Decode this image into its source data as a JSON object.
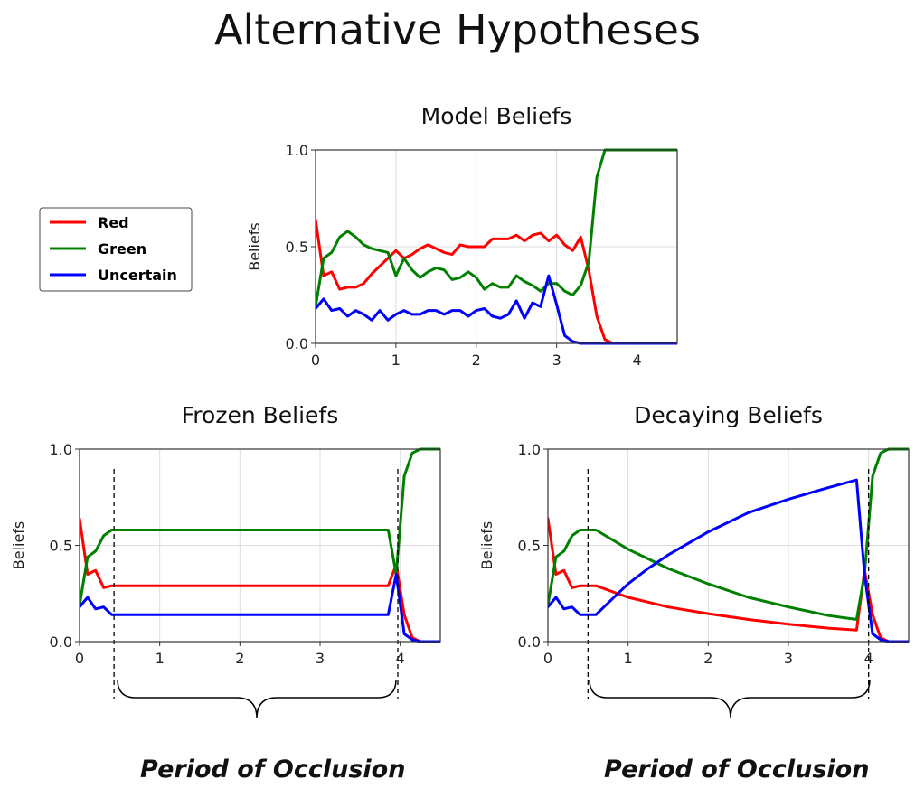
{
  "title": "Alternative Hypotheses",
  "legend": {
    "items": [
      {
        "label": "Red",
        "color": "#ff0000"
      },
      {
        "label": "Green",
        "color": "#008000"
      },
      {
        "label": "Uncertain",
        "color": "#0000ff"
      }
    ]
  },
  "occlusion_labels": [
    "Period of Occlusion",
    "Period of Occlusion"
  ],
  "chart_data": [
    {
      "type": "line",
      "title": "Model Beliefs",
      "ylabel": "Beliefs",
      "xlabel": "",
      "xlim": [
        0,
        4.5
      ],
      "ylim": [
        0,
        1.0
      ],
      "xticks": [
        0,
        1,
        2,
        3,
        4
      ],
      "xtick_labels": [
        "0",
        "1",
        "2",
        "3",
        "4"
      ],
      "yticks": [
        0,
        0.5,
        1.0
      ],
      "ytick_labels": [
        "0.0",
        "0.5",
        "1.0"
      ],
      "grid": true,
      "series": [
        {
          "name": "Red",
          "color": "#ff0000",
          "points": [
            [
              0,
              0.64
            ],
            [
              0.1,
              0.35
            ],
            [
              0.2,
              0.37
            ],
            [
              0.3,
              0.28
            ],
            [
              0.4,
              0.29
            ],
            [
              0.5,
              0.29
            ],
            [
              0.6,
              0.31
            ],
            [
              0.7,
              0.36
            ],
            [
              0.8,
              0.4
            ],
            [
              0.9,
              0.44
            ],
            [
              1.0,
              0.48
            ],
            [
              1.1,
              0.44
            ],
            [
              1.2,
              0.46
            ],
            [
              1.3,
              0.49
            ],
            [
              1.4,
              0.51
            ],
            [
              1.5,
              0.49
            ],
            [
              1.6,
              0.47
            ],
            [
              1.7,
              0.46
            ],
            [
              1.8,
              0.51
            ],
            [
              1.9,
              0.5
            ],
            [
              2.0,
              0.5
            ],
            [
              2.1,
              0.5
            ],
            [
              2.2,
              0.54
            ],
            [
              2.3,
              0.54
            ],
            [
              2.4,
              0.54
            ],
            [
              2.5,
              0.56
            ],
            [
              2.6,
              0.53
            ],
            [
              2.7,
              0.56
            ],
            [
              2.8,
              0.57
            ],
            [
              2.9,
              0.53
            ],
            [
              3.0,
              0.56
            ],
            [
              3.1,
              0.51
            ],
            [
              3.2,
              0.48
            ],
            [
              3.3,
              0.55
            ],
            [
              3.4,
              0.38
            ],
            [
              3.5,
              0.14
            ],
            [
              3.6,
              0.02
            ],
            [
              3.7,
              0.0
            ],
            [
              3.8,
              0.0
            ],
            [
              3.9,
              0.0
            ],
            [
              4.5,
              0.0
            ]
          ]
        },
        {
          "name": "Green",
          "color": "#008000",
          "points": [
            [
              0,
              0.19
            ],
            [
              0.1,
              0.44
            ],
            [
              0.2,
              0.47
            ],
            [
              0.3,
              0.55
            ],
            [
              0.4,
              0.58
            ],
            [
              0.5,
              0.55
            ],
            [
              0.6,
              0.51
            ],
            [
              0.7,
              0.49
            ],
            [
              0.8,
              0.48
            ],
            [
              0.9,
              0.47
            ],
            [
              1.0,
              0.35
            ],
            [
              1.1,
              0.44
            ],
            [
              1.2,
              0.38
            ],
            [
              1.3,
              0.34
            ],
            [
              1.4,
              0.37
            ],
            [
              1.5,
              0.39
            ],
            [
              1.6,
              0.38
            ],
            [
              1.7,
              0.33
            ],
            [
              1.8,
              0.34
            ],
            [
              1.9,
              0.37
            ],
            [
              2.0,
              0.34
            ],
            [
              2.1,
              0.28
            ],
            [
              2.2,
              0.31
            ],
            [
              2.3,
              0.29
            ],
            [
              2.4,
              0.29
            ],
            [
              2.5,
              0.35
            ],
            [
              2.6,
              0.32
            ],
            [
              2.7,
              0.3
            ],
            [
              2.8,
              0.27
            ],
            [
              2.9,
              0.31
            ],
            [
              3.0,
              0.31
            ],
            [
              3.1,
              0.27
            ],
            [
              3.2,
              0.25
            ],
            [
              3.3,
              0.3
            ],
            [
              3.4,
              0.42
            ],
            [
              3.5,
              0.86
            ],
            [
              3.6,
              1.0
            ],
            [
              3.7,
              1.0
            ],
            [
              3.8,
              1.0
            ],
            [
              3.9,
              1.0
            ],
            [
              4.5,
              1.0
            ]
          ]
        },
        {
          "name": "Uncertain",
          "color": "#0000ff",
          "points": [
            [
              0,
              0.18
            ],
            [
              0.1,
              0.23
            ],
            [
              0.2,
              0.17
            ],
            [
              0.3,
              0.18
            ],
            [
              0.4,
              0.14
            ],
            [
              0.5,
              0.17
            ],
            [
              0.6,
              0.15
            ],
            [
              0.7,
              0.12
            ],
            [
              0.8,
              0.17
            ],
            [
              0.9,
              0.12
            ],
            [
              1.0,
              0.15
            ],
            [
              1.1,
              0.17
            ],
            [
              1.2,
              0.15
            ],
            [
              1.3,
              0.15
            ],
            [
              1.4,
              0.17
            ],
            [
              1.5,
              0.17
            ],
            [
              1.6,
              0.15
            ],
            [
              1.7,
              0.17
            ],
            [
              1.8,
              0.17
            ],
            [
              1.9,
              0.14
            ],
            [
              2.0,
              0.17
            ],
            [
              2.1,
              0.18
            ],
            [
              2.2,
              0.14
            ],
            [
              2.3,
              0.13
            ],
            [
              2.4,
              0.15
            ],
            [
              2.5,
              0.22
            ],
            [
              2.6,
              0.13
            ],
            [
              2.7,
              0.21
            ],
            [
              2.8,
              0.19
            ],
            [
              2.9,
              0.35
            ],
            [
              3.0,
              0.2
            ],
            [
              3.1,
              0.04
            ],
            [
              3.2,
              0.01
            ],
            [
              3.3,
              0.0
            ],
            [
              4.5,
              0.0
            ]
          ]
        }
      ]
    },
    {
      "type": "line",
      "title": "Frozen Beliefs",
      "ylabel": "Beliefs",
      "xlabel": "",
      "xlim": [
        0,
        4.5
      ],
      "ylim": [
        0,
        1.0
      ],
      "xticks": [
        0,
        1,
        2,
        3,
        4
      ],
      "xtick_labels": [
        "0",
        "1",
        "2",
        "3",
        "4"
      ],
      "yticks": [
        0,
        0.5,
        1.0
      ],
      "ytick_labels": [
        "0.0",
        "0.5",
        "1.0"
      ],
      "grid": true,
      "occlusion_markers": [
        0.43,
        3.97
      ],
      "series": [
        {
          "name": "Red",
          "color": "#ff0000",
          "points": [
            [
              0,
              0.64
            ],
            [
              0.1,
              0.35
            ],
            [
              0.2,
              0.37
            ],
            [
              0.3,
              0.28
            ],
            [
              0.4,
              0.29
            ],
            [
              0.5,
              0.29
            ],
            [
              3.85,
              0.29
            ],
            [
              3.95,
              0.4
            ],
            [
              4.05,
              0.14
            ],
            [
              4.15,
              0.02
            ],
            [
              4.25,
              0.0
            ],
            [
              4.5,
              0.0
            ]
          ]
        },
        {
          "name": "Green",
          "color": "#008000",
          "points": [
            [
              0,
              0.19
            ],
            [
              0.1,
              0.44
            ],
            [
              0.2,
              0.47
            ],
            [
              0.3,
              0.55
            ],
            [
              0.4,
              0.58
            ],
            [
              0.5,
              0.58
            ],
            [
              3.85,
              0.58
            ],
            [
              3.95,
              0.35
            ],
            [
              4.05,
              0.86
            ],
            [
              4.15,
              0.98
            ],
            [
              4.25,
              1.0
            ],
            [
              4.5,
              1.0
            ]
          ]
        },
        {
          "name": "Uncertain",
          "color": "#0000ff",
          "points": [
            [
              0,
              0.18
            ],
            [
              0.1,
              0.23
            ],
            [
              0.2,
              0.17
            ],
            [
              0.3,
              0.18
            ],
            [
              0.4,
              0.14
            ],
            [
              0.5,
              0.14
            ],
            [
              3.85,
              0.14
            ],
            [
              3.95,
              0.35
            ],
            [
              4.05,
              0.04
            ],
            [
              4.15,
              0.01
            ],
            [
              4.25,
              0.0
            ],
            [
              4.5,
              0.0
            ]
          ]
        }
      ]
    },
    {
      "type": "line",
      "title": "Decaying Beliefs",
      "ylabel": "Beliefs",
      "xlabel": "",
      "xlim": [
        0,
        4.5
      ],
      "ylim": [
        0,
        1.0
      ],
      "xticks": [
        0,
        1,
        2,
        3,
        4
      ],
      "xtick_labels": [
        "0",
        "1",
        "2",
        "3",
        "4"
      ],
      "yticks": [
        0,
        0.5,
        1.0
      ],
      "ytick_labels": [
        "0.0",
        "0.5",
        "1.0"
      ],
      "grid": true,
      "occlusion_markers": [
        0.5,
        4.0
      ],
      "series": [
        {
          "name": "Red",
          "color": "#ff0000",
          "points": [
            [
              0,
              0.64
            ],
            [
              0.1,
              0.35
            ],
            [
              0.2,
              0.37
            ],
            [
              0.3,
              0.28
            ],
            [
              0.4,
              0.29
            ],
            [
              0.6,
              0.29
            ],
            [
              0.8,
              0.26
            ],
            [
              1.0,
              0.23
            ],
            [
              1.25,
              0.205
            ],
            [
              1.5,
              0.18
            ],
            [
              2.0,
              0.145
            ],
            [
              2.5,
              0.115
            ],
            [
              3.0,
              0.09
            ],
            [
              3.5,
              0.07
            ],
            [
              3.85,
              0.06
            ],
            [
              3.95,
              0.37
            ],
            [
              4.05,
              0.14
            ],
            [
              4.15,
              0.02
            ],
            [
              4.25,
              0.0
            ],
            [
              4.5,
              0.0
            ]
          ]
        },
        {
          "name": "Green",
          "color": "#008000",
          "points": [
            [
              0,
              0.19
            ],
            [
              0.1,
              0.44
            ],
            [
              0.2,
              0.47
            ],
            [
              0.3,
              0.55
            ],
            [
              0.4,
              0.58
            ],
            [
              0.5,
              0.58
            ],
            [
              0.6,
              0.58
            ],
            [
              0.8,
              0.53
            ],
            [
              1.0,
              0.48
            ],
            [
              1.25,
              0.43
            ],
            [
              1.5,
              0.38
            ],
            [
              2.0,
              0.3
            ],
            [
              2.5,
              0.23
            ],
            [
              3.0,
              0.18
            ],
            [
              3.5,
              0.135
            ],
            [
              3.85,
              0.115
            ],
            [
              3.95,
              0.35
            ],
            [
              4.05,
              0.86
            ],
            [
              4.15,
              0.98
            ],
            [
              4.25,
              1.0
            ],
            [
              4.5,
              1.0
            ]
          ]
        },
        {
          "name": "Uncertain",
          "color": "#0000ff",
          "points": [
            [
              0,
              0.18
            ],
            [
              0.1,
              0.23
            ],
            [
              0.2,
              0.17
            ],
            [
              0.3,
              0.18
            ],
            [
              0.4,
              0.14
            ],
            [
              0.6,
              0.14
            ],
            [
              0.8,
              0.22
            ],
            [
              1.0,
              0.3
            ],
            [
              1.25,
              0.38
            ],
            [
              1.5,
              0.45
            ],
            [
              2.0,
              0.57
            ],
            [
              2.5,
              0.67
            ],
            [
              3.0,
              0.74
            ],
            [
              3.5,
              0.8
            ],
            [
              3.85,
              0.84
            ],
            [
              3.95,
              0.35
            ],
            [
              4.05,
              0.04
            ],
            [
              4.15,
              0.01
            ],
            [
              4.25,
              0.0
            ],
            [
              4.5,
              0.0
            ]
          ]
        }
      ]
    }
  ]
}
